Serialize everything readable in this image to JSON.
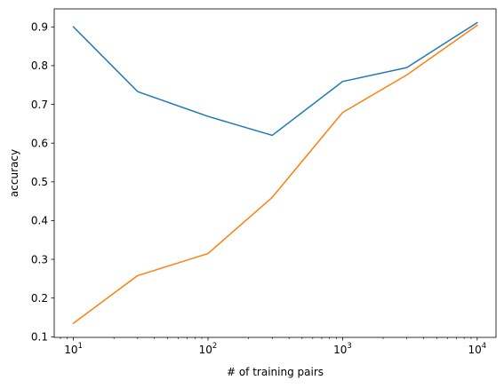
{
  "chart_data": {
    "type": "line",
    "xlabel": "# of training pairs",
    "ylabel": "accuracy",
    "x_scale": "log",
    "x": [
      10,
      30,
      100,
      300,
      1000,
      3000,
      10000
    ],
    "xlim": [
      7.2,
      13800
    ],
    "ylim": [
      0.0985,
      0.9465
    ],
    "x_ticks": [
      {
        "value": 10,
        "base": "10",
        "exp": "1"
      },
      {
        "value": 100,
        "base": "10",
        "exp": "2"
      },
      {
        "value": 1000,
        "base": "10",
        "exp": "3"
      },
      {
        "value": 10000,
        "base": "10",
        "exp": "4"
      }
    ],
    "y_ticks": [
      {
        "value": 0.1,
        "label": "0.1"
      },
      {
        "value": 0.2,
        "label": "0.2"
      },
      {
        "value": 0.3,
        "label": "0.3"
      },
      {
        "value": 0.4,
        "label": "0.4"
      },
      {
        "value": 0.5,
        "label": "0.5"
      },
      {
        "value": 0.6,
        "label": "0.6"
      },
      {
        "value": 0.7,
        "label": "0.7"
      },
      {
        "value": 0.8,
        "label": "0.8"
      },
      {
        "value": 0.9,
        "label": "0.9"
      }
    ],
    "series": [
      {
        "color": "#1f77b4",
        "values": [
          0.9,
          0.733,
          0.669,
          0.62,
          0.759,
          0.795,
          0.911
        ]
      },
      {
        "color": "#ff7f0e",
        "values": [
          0.135,
          0.258,
          0.315,
          0.46,
          0.679,
          0.776,
          0.904
        ]
      }
    ],
    "grid": false,
    "legend": "none"
  }
}
